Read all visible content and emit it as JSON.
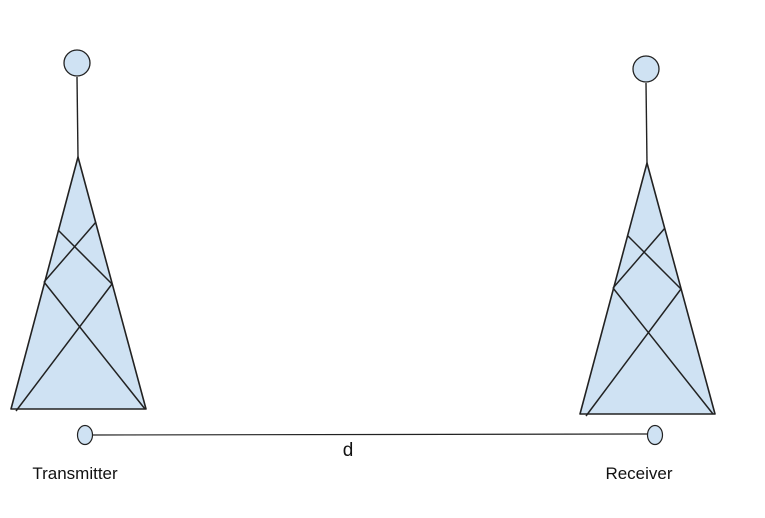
{
  "nodes": {
    "transmitter": {
      "label": "Transmitter"
    },
    "receiver": {
      "label": "Receiver"
    }
  },
  "link": {
    "label": "d"
  },
  "colors": {
    "tower_fill": "#cfe2f3",
    "stroke": "#222222"
  }
}
